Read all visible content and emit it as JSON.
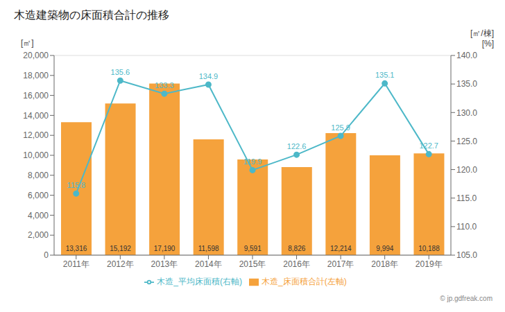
{
  "chart_data": {
    "type": "combo",
    "title": "木造建築物の床面積合計の推移",
    "categories": [
      "2011年",
      "2012年",
      "2013年",
      "2014年",
      "2015年",
      "2016年",
      "2017年",
      "2018年",
      "2019年"
    ],
    "series": [
      {
        "name": "木造_床面積合計(左軸)",
        "type": "bar",
        "color": "#f5a23c",
        "values": [
          13316,
          15192,
          17190,
          11598,
          9591,
          8826,
          12214,
          9994,
          10188
        ],
        "data_labels": true,
        "value_labels": [
          "13,316",
          "15,192",
          "17,190",
          "11,598",
          "9,591",
          "8,826",
          "12,214",
          "9,994",
          "10,188"
        ]
      },
      {
        "name": "木造_平均床面積(右軸)",
        "type": "line",
        "color": "#4db8c8",
        "marker": "circle",
        "axis": "y2",
        "data_labels": true,
        "values": [
          115.8,
          135.6,
          133.3,
          134.9,
          119.9,
          122.6,
          125.9,
          135.1,
          122.7
        ]
      }
    ],
    "ylabel": "[㎡]",
    "y2label": "[㎡/棟]",
    "annotations": [
      "[%]",
      "© jp.gdfreak.com"
    ],
    "ylim": [
      0,
      20000
    ],
    "yticks": [
      0,
      {
        "value": 2000,
        "label": "2,000"
      },
      {
        "value": 4000,
        "label": "4,000"
      },
      {
        "value": 6000,
        "label": "6,000"
      },
      {
        "value": 8000,
        "label": "8,000"
      },
      {
        "value": 10000,
        "label": "10,000"
      },
      {
        "value": 12000,
        "label": "12,000"
      },
      {
        "value": 14000,
        "label": "14,000"
      },
      {
        "value": 16000,
        "label": "16,000"
      },
      {
        "value": 18000,
        "label": "18,000"
      },
      {
        "value": 20000,
        "label": "20,000"
      }
    ],
    "y2lim": [
      105.0,
      140.0
    ],
    "y2ticks": [
      {
        "value": 105,
        "label": "105.0"
      },
      {
        "value": 110,
        "label": "110.0"
      },
      {
        "value": 115,
        "label": "115.0"
      },
      {
        "value": 120,
        "label": "120.0"
      },
      {
        "value": 125,
        "label": "125.0"
      },
      {
        "value": 130,
        "label": "130.0"
      },
      {
        "value": 135,
        "label": "135.0"
      },
      {
        "value": 140,
        "label": "140.0"
      }
    ],
    "grid": true,
    "legend": "bottom"
  }
}
